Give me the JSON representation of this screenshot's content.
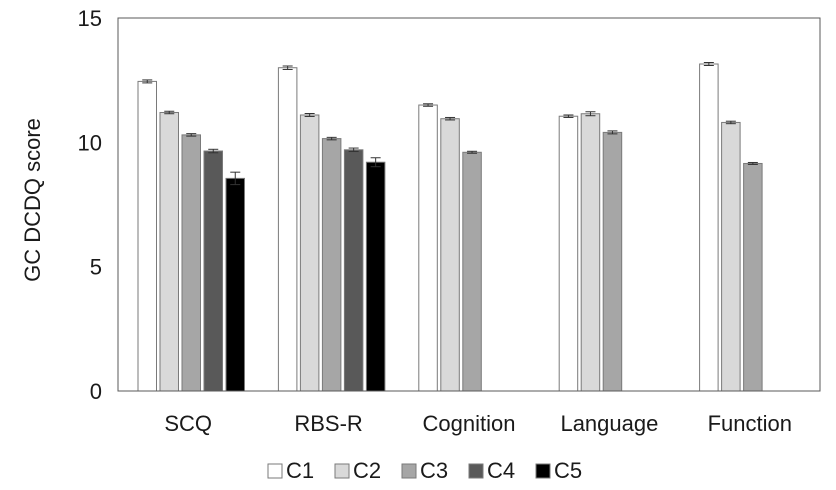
{
  "chart_data": {
    "type": "bar",
    "title": "",
    "xlabel": "",
    "ylabel": "GC DCDQ score",
    "ylim": [
      0,
      15
    ],
    "yticks": [
      0,
      5,
      10,
      15
    ],
    "grid": false,
    "legend_position": "bottom",
    "categories": [
      "SCQ",
      "RBS-R",
      "Cognition",
      "Language",
      "Function"
    ],
    "series": [
      {
        "name": "C1",
        "color": "#ffffff",
        "values": [
          12.45,
          13.0,
          11.5,
          11.05,
          13.15
        ],
        "errors": [
          0.06,
          0.07,
          0.05,
          0.05,
          0.06
        ]
      },
      {
        "name": "C2",
        "color": "#d9d9d9",
        "values": [
          11.2,
          11.1,
          10.95,
          11.15,
          10.8
        ],
        "errors": [
          0.05,
          0.06,
          0.05,
          0.08,
          0.05
        ]
      },
      {
        "name": "C3",
        "color": "#a6a6a6",
        "values": [
          10.3,
          10.15,
          9.6,
          10.4,
          9.15
        ],
        "errors": [
          0.05,
          0.05,
          0.04,
          0.06,
          0.04
        ]
      },
      {
        "name": "C4",
        "color": "#595959",
        "values": [
          9.65,
          9.7,
          null,
          null,
          null
        ],
        "errors": [
          0.07,
          0.07,
          null,
          null,
          null
        ]
      },
      {
        "name": "C5",
        "color": "#000000",
        "values": [
          8.55,
          9.2,
          null,
          null,
          null
        ],
        "errors": [
          0.25,
          0.18,
          null,
          null,
          null
        ]
      }
    ]
  }
}
